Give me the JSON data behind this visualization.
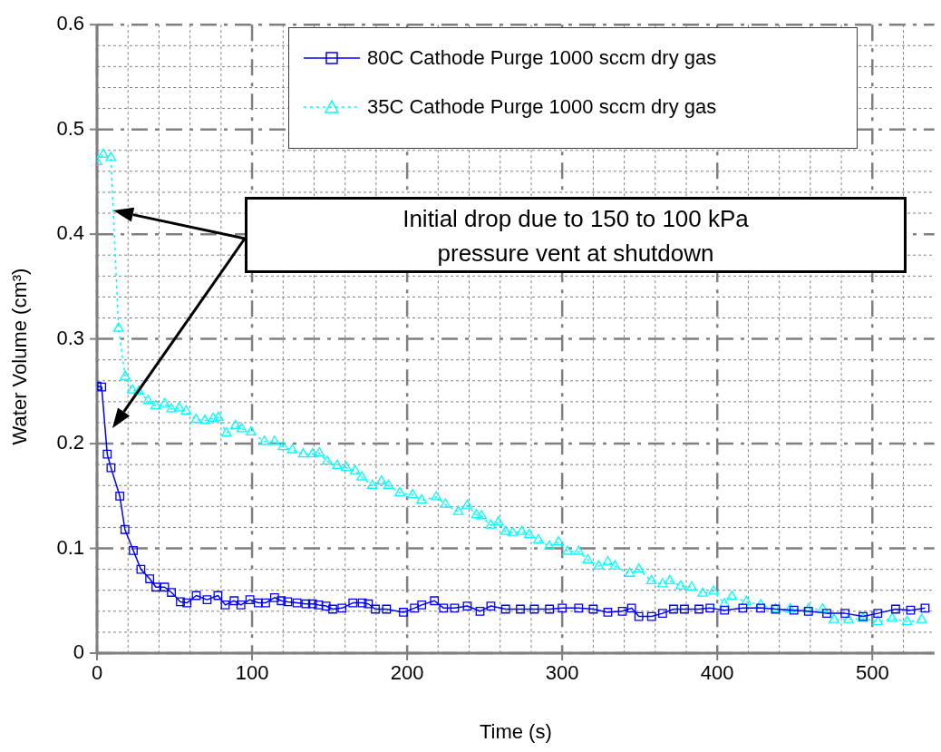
{
  "chart_data": {
    "type": "line",
    "xlabel": "Time (s)",
    "ylabel": "Water Volume (cm³)",
    "xlim": [
      0,
      540
    ],
    "ylim": [
      0,
      0.6
    ],
    "xticks": [
      0,
      {
        "value": 20,
        "label": null
      },
      {
        "value": 40,
        "label": null
      },
      {
        "value": 60,
        "label": null
      },
      {
        "value": 80,
        "label": null
      },
      100,
      {
        "value": 120,
        "label": null
      },
      {
        "value": 140,
        "label": null
      },
      {
        "value": 160,
        "label": null
      },
      {
        "value": 180,
        "label": null
      },
      200,
      {
        "value": 220,
        "label": null
      },
      {
        "value": 240,
        "label": null
      },
      {
        "value": 260,
        "label": null
      },
      {
        "value": 280,
        "label": null
      },
      300,
      {
        "value": 320,
        "label": null
      },
      {
        "value": 340,
        "label": null
      },
      {
        "value": 360,
        "label": null
      },
      {
        "value": 380,
        "label": null
      },
      400,
      {
        "value": 420,
        "label": null
      },
      {
        "value": 440,
        "label": null
      },
      {
        "value": 460,
        "label": null
      },
      {
        "value": 480,
        "label": null
      },
      500,
      {
        "value": 520,
        "label": null
      }
    ],
    "yticks": [
      0,
      {
        "value": 0.02,
        "label": null
      },
      {
        "value": 0.04,
        "label": null
      },
      {
        "value": 0.06,
        "label": null
      },
      {
        "value": 0.08,
        "label": null
      },
      0.1,
      {
        "value": 0.12,
        "label": null
      },
      {
        "value": 0.14,
        "label": null
      },
      {
        "value": 0.16,
        "label": null
      },
      {
        "value": 0.18,
        "label": null
      },
      0.2,
      {
        "value": 0.22,
        "label": null
      },
      {
        "value": 0.24,
        "label": null
      },
      {
        "value": 0.26,
        "label": null
      },
      {
        "value": 0.28,
        "label": null
      },
      0.3,
      {
        "value": 0.32,
        "label": null
      },
      {
        "value": 0.34,
        "label": null
      },
      {
        "value": 0.36,
        "label": null
      },
      {
        "value": 0.38,
        "label": null
      },
      0.4,
      {
        "value": 0.42,
        "label": null
      },
      {
        "value": 0.44,
        "label": null
      },
      {
        "value": 0.46,
        "label": null
      },
      {
        "value": 0.48,
        "label": null
      },
      0.5,
      {
        "value": 0.52,
        "label": null
      },
      {
        "value": 0.54,
        "label": null
      },
      {
        "value": 0.56,
        "label": null
      },
      {
        "value": 0.58,
        "label": null
      },
      0.6
    ],
    "grid": true,
    "legend": "top right",
    "annotations": [
      "Initial drop due to 150 to 100 kPa\npressure vent at shutdown"
    ],
    "series": [
      {
        "name": "80C Cathode Purge 1000 sccm dry gas",
        "color": "#0000ff",
        "marker": "square",
        "line_style": "solid",
        "x": [
          0,
          3,
          6.6,
          9,
          14.7,
          18,
          23.4,
          28.3,
          34,
          38,
          43.6,
          48,
          53.8,
          58,
          64,
          71,
          78,
          82.7,
          88.4,
          92.8,
          98.6,
          104,
          108.7,
          114.5,
          118.8,
          123,
          129,
          134.7,
          139,
          143,
          147.7,
          152,
          158,
          165,
          171,
          175,
          179.5,
          186.7,
          197.6,
          204.7,
          209.4,
          217.6,
          223.5,
          230.6,
          238.8,
          247,
          254,
          263.5,
          273,
          282,
          291.8,
          300,
          310.6,
          320,
          329.4,
          338.8,
          344.7,
          349.4,
          357.6,
          364.7,
          371.8,
          378.8,
          388.2,
          395.3,
          404.7,
          416.5,
          428,
          437.6,
          449.4,
          458.8,
          470.6,
          482.4,
          494,
          503.5,
          515,
          524.7,
          534
        ],
        "values": [
          0.255,
          0.254,
          0.19,
          0.177,
          0.15,
          0.118,
          0.098,
          0.08,
          0.071,
          0.063,
          0.063,
          0.058,
          0.049,
          0.048,
          0.055,
          0.051,
          0.055,
          0.046,
          0.05,
          0.046,
          0.051,
          0.048,
          0.048,
          0.053,
          0.05,
          0.049,
          0.048,
          0.047,
          0.047,
          0.046,
          0.045,
          0.042,
          0.043,
          0.048,
          0.048,
          0.047,
          0.042,
          0.042,
          0.039,
          0.043,
          0.046,
          0.05,
          0.043,
          0.043,
          0.045,
          0.04,
          0.045,
          0.042,
          0.042,
          0.042,
          0.042,
          0.043,
          0.043,
          0.042,
          0.039,
          0.04,
          0.043,
          0.035,
          0.035,
          0.038,
          0.042,
          0.042,
          0.042,
          0.043,
          0.041,
          0.043,
          0.043,
          0.042,
          0.041,
          0.04,
          0.038,
          0.038,
          0.035,
          0.038,
          0.042,
          0.041,
          0.043
        ]
      },
      {
        "name": "35C Cathode Purge 1000 sccm dry gas",
        "color": "#00ffff",
        "marker": "triangle",
        "line_style": "dotted",
        "x": [
          0,
          4,
          9,
          13.9,
          18.2,
          22.8,
          27,
          33,
          37.9,
          43.6,
          48,
          53,
          57.5,
          63.9,
          69.6,
          74.9,
          78.3,
          83.5,
          89.3,
          93.4,
          99.4,
          108,
          114.5,
          120,
          126,
          133,
          139,
          143.4,
          148.5,
          155,
          160.7,
          166.5,
          170.8,
          177.6,
          183.5,
          188,
          195.3,
          203.5,
          209.4,
          218.8,
          224.7,
          233,
          238.8,
          244.7,
          248,
          254,
          258.8,
          263.5,
          268,
          274,
          278.8,
          284.7,
          291.8,
          297.6,
          303.5,
          310.6,
          316.5,
          323.5,
          329.4,
          334,
          343.5,
          349.4,
          357.6,
          364.7,
          369.4,
          376.5,
          383.5,
          390.6,
          397.6,
          404.7,
          409.4,
          418.8,
          428,
          437.6,
          447,
          458.8,
          468,
          475.3,
          484.7,
          494,
          503.5,
          512.9,
          522.4,
          531.8
        ],
        "values": [
          0.469,
          0.476,
          0.473,
          0.31,
          0.264,
          0.251,
          0.25,
          0.241,
          0.236,
          0.238,
          0.233,
          0.234,
          0.231,
          0.223,
          0.222,
          0.224,
          0.225,
          0.21,
          0.217,
          0.214,
          0.211,
          0.202,
          0.202,
          0.197,
          0.194,
          0.19,
          0.19,
          0.191,
          0.183,
          0.179,
          0.177,
          0.174,
          0.168,
          0.16,
          0.164,
          0.16,
          0.153,
          0.151,
          0.146,
          0.149,
          0.142,
          0.135,
          0.141,
          0.132,
          0.131,
          0.122,
          0.125,
          0.116,
          0.115,
          0.116,
          0.113,
          0.108,
          0.102,
          0.106,
          0.097,
          0.097,
          0.089,
          0.083,
          0.087,
          0.083,
          0.076,
          0.08,
          0.069,
          0.066,
          0.069,
          0.064,
          0.063,
          0.057,
          0.059,
          0.047,
          0.054,
          0.049,
          0.046,
          0.042,
          0.042,
          0.042,
          0.042,
          0.032,
          0.032,
          0.033,
          0.03,
          0.033,
          0.03,
          0.032
        ]
      }
    ]
  }
}
